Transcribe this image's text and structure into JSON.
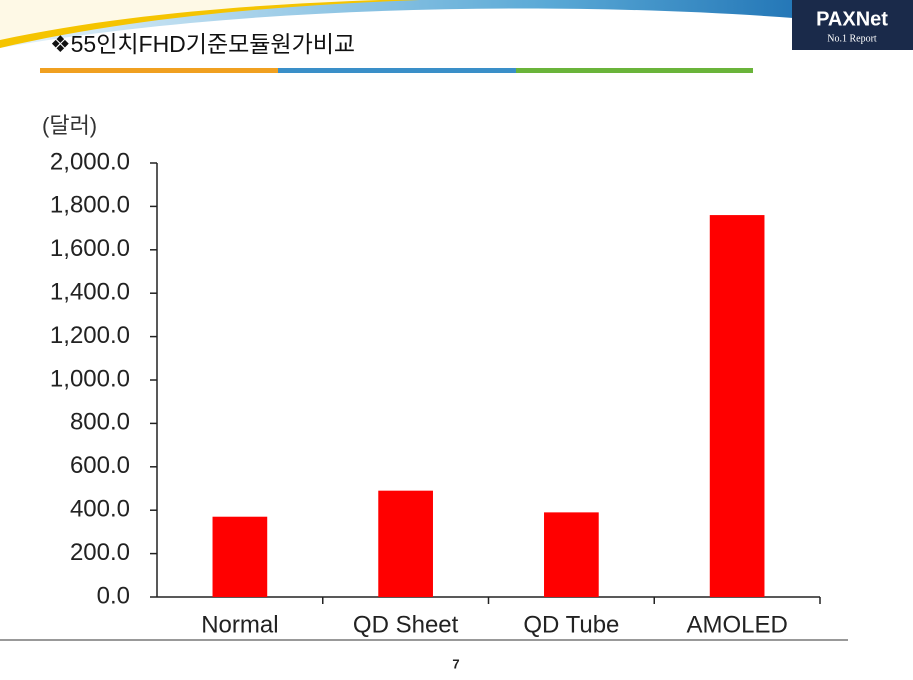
{
  "slide": {
    "title": "❖55인치FHD기준모듈원가비교",
    "logo": "PAXNet",
    "logo_sub": "No.1 Report",
    "page": 7
  },
  "chart_data": {
    "type": "bar",
    "y_label": "(달러)",
    "categories": [
      "Normal",
      "QD Sheet",
      "QD Tube",
      "AMOLED"
    ],
    "values": [
      370,
      490,
      390,
      1760
    ],
    "color": "#ff0000",
    "ylim": [
      0,
      2000
    ],
    "yticks": [
      {
        "value": 0,
        "label": "0.0"
      },
      {
        "value": 200,
        "label": "200.0"
      },
      {
        "value": 400,
        "label": "400.0"
      },
      {
        "value": 600,
        "label": "600.0"
      },
      {
        "value": 800,
        "label": "800.0"
      },
      {
        "value": 1000,
        "label": "1,000.0"
      },
      {
        "value": 1200,
        "label": "1,200.0"
      },
      {
        "value": 1400,
        "label": "1,400.0"
      },
      {
        "value": 1600,
        "label": "1,600.0"
      },
      {
        "value": 1800,
        "label": "1,800.0"
      },
      {
        "value": 2000,
        "label": "2,000.0"
      }
    ],
    "grid": false
  }
}
